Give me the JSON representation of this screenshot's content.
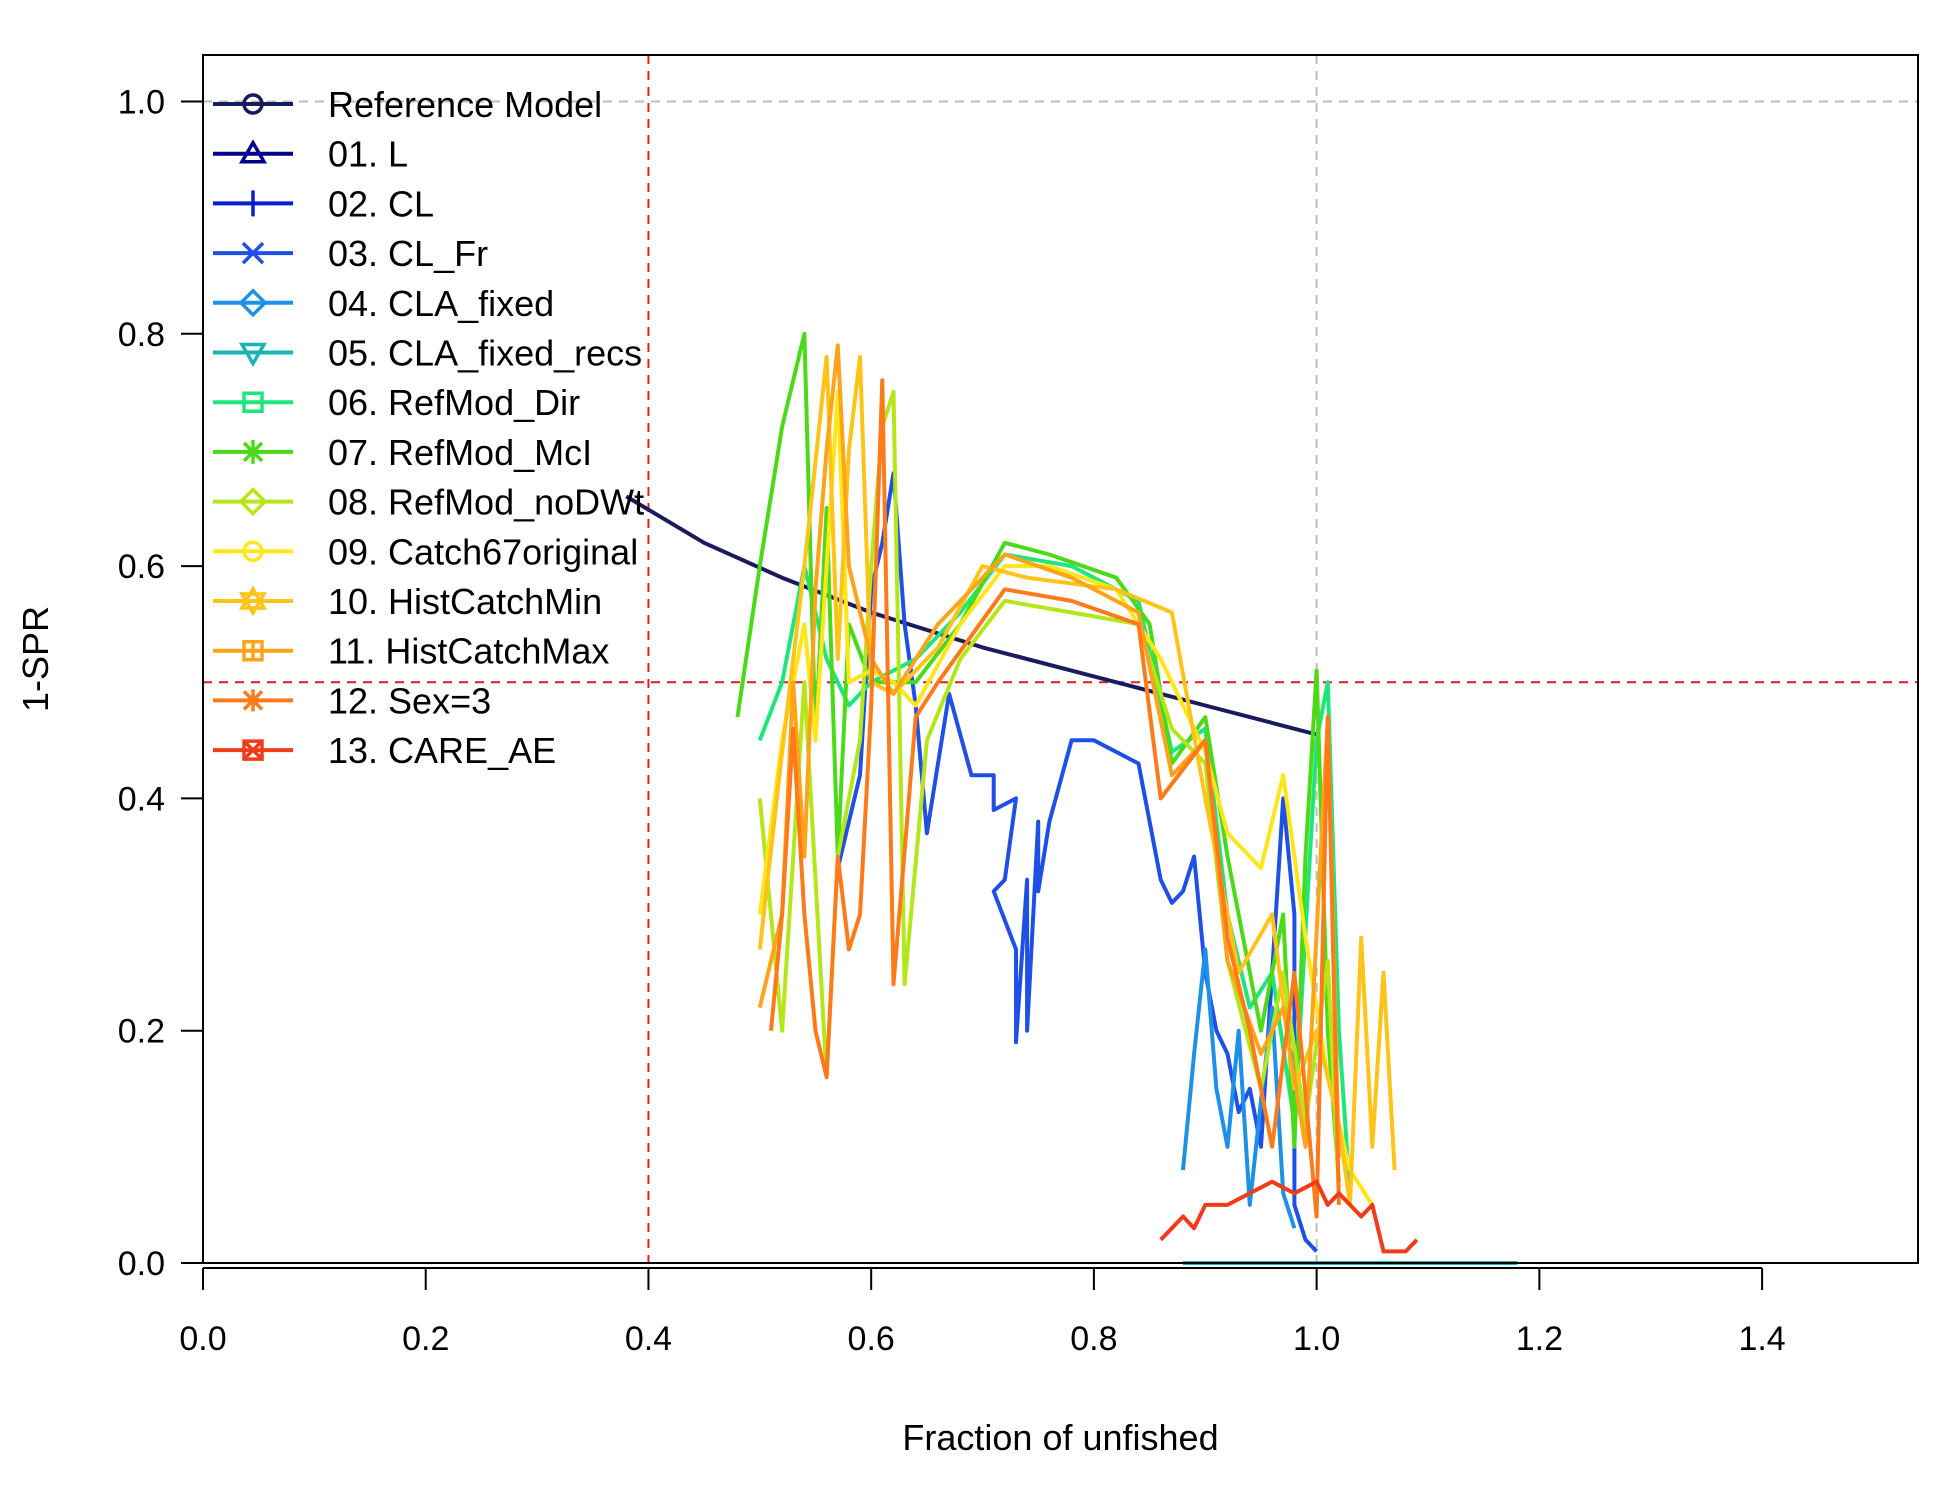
{
  "chart_data": {
    "type": "line",
    "title": "",
    "xlabel": "Fraction of unfished",
    "ylabel": "1-SPR",
    "xlim": [
      0,
      1.54
    ],
    "ylim": [
      0,
      1.04
    ],
    "xticks": [
      "0.0",
      "0.2",
      "0.4",
      "0.6",
      "0.8",
      "1.0",
      "1.2",
      "1.4"
    ],
    "yticks": [
      "0.0",
      "0.2",
      "0.4",
      "0.6",
      "0.8",
      "1.0"
    ],
    "grid": false,
    "legend_position": "top-left",
    "reference_lines": [
      {
        "axis": "x",
        "value": 0.4,
        "color": "#e41a1c",
        "style": "dashed"
      },
      {
        "axis": "x",
        "value": 1.0,
        "color": "#bdbdbd",
        "style": "dashed"
      },
      {
        "axis": "y",
        "value": 0.5,
        "color": "#e41a1c",
        "style": "dashed"
      },
      {
        "axis": "y",
        "value": 1.0,
        "color": "#bdbdbd",
        "style": "dashed"
      }
    ],
    "series": [
      {
        "name": "Reference Model",
        "color": "#1a1a5e",
        "marker": "circle",
        "points": [
          [
            0.38,
            0.66
          ],
          [
            0.45,
            0.62
          ],
          [
            0.52,
            0.59
          ],
          [
            0.6,
            0.56
          ],
          [
            0.7,
            0.53
          ],
          [
            0.8,
            0.505
          ],
          [
            0.9,
            0.48
          ],
          [
            0.96,
            0.465
          ],
          [
            1.0,
            0.455
          ]
        ]
      },
      {
        "name": "01. L",
        "color": "#00008b",
        "marker": "triangle",
        "points": []
      },
      {
        "name": "02. CL",
        "color": "#0a1ecc",
        "marker": "plus",
        "points": []
      },
      {
        "name": "03. CL_Fr",
        "color": "#1f50e6",
        "marker": "x",
        "points": [
          [
            0.57,
            0.34
          ],
          [
            0.59,
            0.42
          ],
          [
            0.6,
            0.58
          ],
          [
            0.61,
            0.62
          ],
          [
            0.62,
            0.68
          ],
          [
            0.63,
            0.55
          ],
          [
            0.64,
            0.48
          ],
          [
            0.65,
            0.37
          ],
          [
            0.67,
            0.49
          ],
          [
            0.69,
            0.42
          ],
          [
            0.71,
            0.42
          ],
          [
            0.71,
            0.39
          ],
          [
            0.73,
            0.4
          ],
          [
            0.72,
            0.33
          ],
          [
            0.71,
            0.32
          ],
          [
            0.73,
            0.27
          ],
          [
            0.73,
            0.19
          ],
          [
            0.74,
            0.33
          ],
          [
            0.74,
            0.2
          ],
          [
            0.75,
            0.38
          ],
          [
            0.75,
            0.32
          ],
          [
            0.76,
            0.38
          ],
          [
            0.78,
            0.45
          ],
          [
            0.8,
            0.45
          ],
          [
            0.82,
            0.44
          ],
          [
            0.84,
            0.43
          ],
          [
            0.85,
            0.38
          ],
          [
            0.86,
            0.33
          ],
          [
            0.87,
            0.31
          ],
          [
            0.88,
            0.32
          ],
          [
            0.89,
            0.35
          ],
          [
            0.9,
            0.25
          ],
          [
            0.91,
            0.2
          ],
          [
            0.92,
            0.18
          ],
          [
            0.93,
            0.13
          ],
          [
            0.94,
            0.15
          ],
          [
            0.95,
            0.1
          ],
          [
            0.96,
            0.25
          ],
          [
            0.97,
            0.4
          ],
          [
            0.98,
            0.3
          ],
          [
            0.98,
            0.05
          ],
          [
            0.99,
            0.02
          ],
          [
            1.0,
            0.01
          ]
        ]
      },
      {
        "name": "04. CLA_fixed",
        "color": "#1e90e6",
        "marker": "diamond",
        "points": [
          [
            0.88,
            0.08
          ],
          [
            0.89,
            0.18
          ],
          [
            0.9,
            0.27
          ],
          [
            0.91,
            0.15
          ],
          [
            0.92,
            0.1
          ],
          [
            0.93,
            0.2
          ],
          [
            0.94,
            0.05
          ],
          [
            0.95,
            0.14
          ],
          [
            0.96,
            0.22
          ],
          [
            0.97,
            0.06
          ],
          [
            0.98,
            0.03
          ]
        ]
      },
      {
        "name": "05. CLA_fixed_recs",
        "color": "#19b4b4",
        "marker": "triangle-down",
        "points": [
          [
            0.88,
            0.0
          ],
          [
            1.0,
            0.0
          ],
          [
            1.18,
            0.0
          ]
        ]
      },
      {
        "name": "06. RefMod_Dir",
        "color": "#1ee67a",
        "marker": "square",
        "points": [
          [
            0.5,
            0.45
          ],
          [
            0.52,
            0.5
          ],
          [
            0.54,
            0.6
          ],
          [
            0.56,
            0.52
          ],
          [
            0.58,
            0.48
          ],
          [
            0.6,
            0.5
          ],
          [
            0.64,
            0.52
          ],
          [
            0.68,
            0.56
          ],
          [
            0.72,
            0.61
          ],
          [
            0.78,
            0.6
          ],
          [
            0.84,
            0.57
          ],
          [
            0.87,
            0.44
          ],
          [
            0.9,
            0.46
          ],
          [
            0.92,
            0.3
          ],
          [
            0.94,
            0.22
          ],
          [
            0.96,
            0.25
          ],
          [
            0.98,
            0.12
          ],
          [
            1.0,
            0.45
          ],
          [
            1.01,
            0.5
          ],
          [
            1.02,
            0.2
          ],
          [
            1.03,
            0.06
          ]
        ]
      },
      {
        "name": "07. RefMod_McI",
        "color": "#4cd91a",
        "marker": "asterisk",
        "points": [
          [
            0.48,
            0.47
          ],
          [
            0.5,
            0.6
          ],
          [
            0.52,
            0.72
          ],
          [
            0.54,
            0.8
          ],
          [
            0.55,
            0.45
          ],
          [
            0.56,
            0.65
          ],
          [
            0.57,
            0.35
          ],
          [
            0.58,
            0.55
          ],
          [
            0.6,
            0.5
          ],
          [
            0.64,
            0.5
          ],
          [
            0.68,
            0.55
          ],
          [
            0.72,
            0.62
          ],
          [
            0.76,
            0.61
          ],
          [
            0.82,
            0.59
          ],
          [
            0.85,
            0.55
          ],
          [
            0.87,
            0.43
          ],
          [
            0.9,
            0.47
          ],
          [
            0.92,
            0.35
          ],
          [
            0.95,
            0.2
          ],
          [
            0.97,
            0.3
          ],
          [
            0.98,
            0.1
          ],
          [
            0.99,
            0.35
          ],
          [
            1.0,
            0.51
          ],
          [
            1.01,
            0.2
          ],
          [
            1.02,
            0.07
          ]
        ]
      },
      {
        "name": "08. RefMod_noDWt",
        "color": "#b4e61a",
        "marker": "diamond",
        "points": [
          [
            0.5,
            0.4
          ],
          [
            0.52,
            0.2
          ],
          [
            0.54,
            0.5
          ],
          [
            0.56,
            0.16
          ],
          [
            0.57,
            0.35
          ],
          [
            0.59,
            0.45
          ],
          [
            0.6,
            0.6
          ],
          [
            0.61,
            0.72
          ],
          [
            0.62,
            0.75
          ],
          [
            0.63,
            0.24
          ],
          [
            0.65,
            0.45
          ],
          [
            0.68,
            0.52
          ],
          [
            0.72,
            0.57
          ],
          [
            0.78,
            0.56
          ],
          [
            0.84,
            0.55
          ],
          [
            0.87,
            0.46
          ],
          [
            0.9,
            0.43
          ],
          [
            0.92,
            0.26
          ],
          [
            0.95,
            0.15
          ],
          [
            0.97,
            0.25
          ],
          [
            0.99,
            0.12
          ],
          [
            1.01,
            0.26
          ],
          [
            1.02,
            0.06
          ]
        ]
      },
      {
        "name": "09. Catch67original",
        "color": "#ffe619",
        "marker": "circle",
        "points": [
          [
            0.5,
            0.3
          ],
          [
            0.52,
            0.45
          ],
          [
            0.54,
            0.55
          ],
          [
            0.55,
            0.45
          ],
          [
            0.57,
            0.75
          ],
          [
            0.58,
            0.5
          ],
          [
            0.6,
            0.51
          ],
          [
            0.62,
            0.5
          ],
          [
            0.64,
            0.48
          ],
          [
            0.68,
            0.55
          ],
          [
            0.72,
            0.6
          ],
          [
            0.76,
            0.6
          ],
          [
            0.82,
            0.58
          ],
          [
            0.86,
            0.52
          ],
          [
            0.9,
            0.44
          ],
          [
            0.92,
            0.37
          ],
          [
            0.95,
            0.34
          ],
          [
            0.97,
            0.42
          ],
          [
            0.99,
            0.28
          ],
          [
            1.01,
            0.16
          ],
          [
            1.03,
            0.08
          ],
          [
            1.05,
            0.05
          ]
        ]
      },
      {
        "name": "10. HistCatchMin",
        "color": "#ffc31a",
        "marker": "star",
        "points": [
          [
            0.5,
            0.27
          ],
          [
            0.52,
            0.44
          ],
          [
            0.54,
            0.6
          ],
          [
            0.56,
            0.78
          ],
          [
            0.57,
            0.52
          ],
          [
            0.58,
            0.7
          ],
          [
            0.59,
            0.78
          ],
          [
            0.6,
            0.5
          ],
          [
            0.62,
            0.49
          ],
          [
            0.66,
            0.53
          ],
          [
            0.7,
            0.6
          ],
          [
            0.74,
            0.59
          ],
          [
            0.82,
            0.58
          ],
          [
            0.87,
            0.56
          ],
          [
            0.9,
            0.4
          ],
          [
            0.93,
            0.25
          ],
          [
            0.96,
            0.3
          ],
          [
            0.98,
            0.15
          ],
          [
            1.0,
            0.2
          ],
          [
            1.02,
            0.12
          ],
          [
            1.03,
            0.05
          ],
          [
            1.04,
            0.28
          ],
          [
            1.05,
            0.1
          ],
          [
            1.06,
            0.25
          ],
          [
            1.07,
            0.08
          ]
        ]
      },
      {
        "name": "11. HistCatchMax",
        "color": "#ffa31a",
        "marker": "square-cross",
        "points": [
          [
            0.5,
            0.22
          ],
          [
            0.52,
            0.3
          ],
          [
            0.53,
            0.5
          ],
          [
            0.54,
            0.35
          ],
          [
            0.55,
            0.58
          ],
          [
            0.56,
            0.7
          ],
          [
            0.57,
            0.79
          ],
          [
            0.58,
            0.6
          ],
          [
            0.6,
            0.52
          ],
          [
            0.62,
            0.49
          ],
          [
            0.66,
            0.55
          ],
          [
            0.72,
            0.61
          ],
          [
            0.78,
            0.59
          ],
          [
            0.84,
            0.56
          ],
          [
            0.87,
            0.42
          ],
          [
            0.9,
            0.45
          ],
          [
            0.92,
            0.26
          ],
          [
            0.95,
            0.18
          ],
          [
            0.97,
            0.22
          ],
          [
            0.99,
            0.1
          ],
          [
            1.01,
            0.47
          ],
          [
            1.02,
            0.09
          ]
        ]
      },
      {
        "name": "12. Sex=3",
        "color": "#ff7a1a",
        "marker": "star-x",
        "points": [
          [
            0.51,
            0.2
          ],
          [
            0.52,
            0.3
          ],
          [
            0.53,
            0.46
          ],
          [
            0.54,
            0.3
          ],
          [
            0.55,
            0.2
          ],
          [
            0.56,
            0.16
          ],
          [
            0.57,
            0.35
          ],
          [
            0.58,
            0.27
          ],
          [
            0.59,
            0.3
          ],
          [
            0.6,
            0.48
          ],
          [
            0.61,
            0.76
          ],
          [
            0.62,
            0.24
          ],
          [
            0.64,
            0.47
          ],
          [
            0.66,
            0.5
          ],
          [
            0.72,
            0.58
          ],
          [
            0.78,
            0.57
          ],
          [
            0.84,
            0.55
          ],
          [
            0.86,
            0.4
          ],
          [
            0.9,
            0.45
          ],
          [
            0.92,
            0.28
          ],
          [
            0.94,
            0.2
          ],
          [
            0.96,
            0.1
          ],
          [
            0.98,
            0.25
          ],
          [
            1.0,
            0.04
          ],
          [
            1.01,
            0.47
          ],
          [
            1.02,
            0.05
          ]
        ]
      },
      {
        "name": "13. CARE_AE",
        "color": "#f03c1a",
        "marker": "square-x",
        "points": [
          [
            0.86,
            0.02
          ],
          [
            0.87,
            0.03
          ],
          [
            0.88,
            0.04
          ],
          [
            0.89,
            0.03
          ],
          [
            0.9,
            0.05
          ],
          [
            0.92,
            0.05
          ],
          [
            0.94,
            0.06
          ],
          [
            0.96,
            0.07
          ],
          [
            0.98,
            0.06
          ],
          [
            1.0,
            0.07
          ],
          [
            1.01,
            0.05
          ],
          [
            1.02,
            0.06
          ],
          [
            1.04,
            0.04
          ],
          [
            1.05,
            0.05
          ],
          [
            1.06,
            0.01
          ],
          [
            1.08,
            0.01
          ],
          [
            1.09,
            0.02
          ]
        ]
      }
    ]
  }
}
